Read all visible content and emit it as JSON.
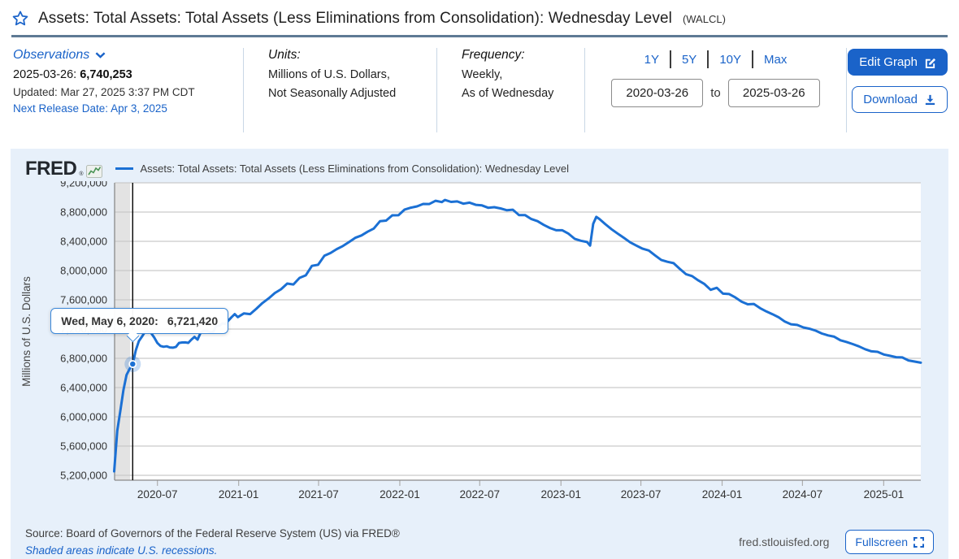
{
  "colors": {
    "accent": "#1a63c9",
    "line": "#1b70d4",
    "card_bg": "#e7f0fa",
    "rule": "#5e7a94"
  },
  "header": {
    "title": "Assets: Total Assets: Total Assets (Less Eliminations from Consolidation): Wednesday Level",
    "series_id": "(WALCL)"
  },
  "info_bar": {
    "observations": {
      "label": "Observations",
      "latest_date": "2025-03-26:",
      "latest_value": "6,740,253",
      "updated": "Updated: Mar 27, 2025 3:37 PM CDT",
      "next_release": "Next Release Date: Apr 3, 2025"
    },
    "units": {
      "label": "Units:",
      "line1": "Millions of U.S. Dollars,",
      "line2": "Not Seasonally Adjusted"
    },
    "frequency": {
      "label": "Frequency:",
      "line1": "Weekly,",
      "line2": "As of Wednesday"
    },
    "range": {
      "presets": [
        "1Y",
        "5Y",
        "10Y",
        "Max"
      ],
      "start_date": "2020-03-26",
      "to_label": "to",
      "end_date": "2025-03-26"
    },
    "actions": {
      "edit_graph": "Edit Graph",
      "download": "Download"
    }
  },
  "chart": {
    "logo": "FRED",
    "logo_reg": "®",
    "legend": "Assets: Total Assets: Total Assets (Less Eliminations from Consolidation): Wednesday Level",
    "tooltip": {
      "date_label": "Wed, May 6, 2020:",
      "value": "6,721,420"
    },
    "footer": {
      "source": "Source: Board of Governors of the Federal Reserve System (US) via FRED®",
      "recession_note": "Shaded areas indicate U.S. recessions.",
      "site": "fred.stlouisfed.org",
      "fullscreen": "Fullscreen"
    }
  },
  "chart_data": {
    "type": "line",
    "title": "Assets: Total Assets: Total Assets (Less Eliminations from Consolidation): Wednesday Level",
    "xlabel": "",
    "ylabel": "Millions of U.S. Dollars",
    "grid": true,
    "legend_position": "top-left",
    "x_range": [
      "2020-03-26",
      "2025-03-26"
    ],
    "ylim": [
      5200000,
      9200000
    ],
    "line_color": "#1b70d4",
    "highlight": {
      "date": "2020-05-06",
      "value": 6721420
    },
    "recession_band": {
      "start": "2020-03-26",
      "end": "2020-04-30"
    },
    "y_ticks": [
      {
        "label": "9,200,000",
        "value": 9200000
      },
      {
        "label": "8,800,000",
        "value": 8800000
      },
      {
        "label": "8,400,000",
        "value": 8400000
      },
      {
        "label": "8,000,000",
        "value": 8000000
      },
      {
        "label": "7,600,000",
        "value": 7600000
      },
      {
        "label": "7,200,000",
        "value": 7200000
      },
      {
        "label": "6,800,000",
        "value": 6800000
      },
      {
        "label": "6,400,000",
        "value": 6400000
      },
      {
        "label": "6,000,000",
        "value": 6000000
      },
      {
        "label": "5,600,000",
        "value": 5600000
      },
      {
        "label": "5,200,000",
        "value": 5200000
      }
    ],
    "x_ticks": [
      {
        "label": "2020-07",
        "date": "2020-07-01"
      },
      {
        "label": "2021-01",
        "date": "2021-01-01"
      },
      {
        "label": "2021-07",
        "date": "2021-07-01"
      },
      {
        "label": "2022-01",
        "date": "2022-01-01"
      },
      {
        "label": "2022-07",
        "date": "2022-07-01"
      },
      {
        "label": "2023-01",
        "date": "2023-01-01"
      },
      {
        "label": "2023-07",
        "date": "2023-07-01"
      },
      {
        "label": "2024-01",
        "date": "2024-01-01"
      },
      {
        "label": "2024-07",
        "date": "2024-07-01"
      },
      {
        "label": "2025-01",
        "date": "2025-01-01"
      }
    ],
    "series": [
      {
        "name": "Assets: Total Assets: Total Assets (Less Eliminations from Consolidation): Wednesday Level",
        "points": [
          [
            "2020-03-25",
            5254297
          ],
          [
            "2020-04-01",
            5811609
          ],
          [
            "2020-04-08",
            6083558
          ],
          [
            "2020-04-15",
            6367888
          ],
          [
            "2020-04-22",
            6573161
          ],
          [
            "2020-04-29",
            6655926
          ],
          [
            "2020-05-06",
            6721420
          ],
          [
            "2020-05-13",
            6910000
          ],
          [
            "2020-05-20",
            7037000
          ],
          [
            "2020-05-27",
            7097000
          ],
          [
            "2020-06-03",
            7165000
          ],
          [
            "2020-06-10",
            7169000
          ],
          [
            "2020-06-17",
            7143000
          ],
          [
            "2020-06-24",
            7082000
          ],
          [
            "2020-07-01",
            7009000
          ],
          [
            "2020-07-08",
            6969000
          ],
          [
            "2020-07-15",
            6958000
          ],
          [
            "2020-07-22",
            6964000
          ],
          [
            "2020-07-29",
            6949000
          ],
          [
            "2020-08-05",
            6945000
          ],
          [
            "2020-08-12",
            6957000
          ],
          [
            "2020-08-19",
            7010000
          ],
          [
            "2020-08-26",
            7017000
          ],
          [
            "2020-09-02",
            7018000
          ],
          [
            "2020-09-09",
            7011000
          ],
          [
            "2020-09-16",
            7056000
          ],
          [
            "2020-09-23",
            7093000
          ],
          [
            "2020-09-30",
            7056000
          ],
          [
            "2020-10-07",
            7151000
          ],
          [
            "2020-10-14",
            7178000
          ],
          [
            "2020-10-21",
            7177000
          ],
          [
            "2020-10-28",
            7157000
          ],
          [
            "2020-11-04",
            7157000
          ],
          [
            "2020-11-11",
            7243000
          ],
          [
            "2020-11-18",
            7243000
          ],
          [
            "2020-11-25",
            7279000
          ],
          [
            "2020-12-02",
            7270000
          ],
          [
            "2020-12-09",
            7319000
          ],
          [
            "2020-12-16",
            7363000
          ],
          [
            "2020-12-23",
            7404000
          ],
          [
            "2020-12-30",
            7363000
          ],
          [
            "2021-01-13",
            7415000
          ],
          [
            "2021-01-27",
            7404000
          ],
          [
            "2021-02-10",
            7478000
          ],
          [
            "2021-02-24",
            7557000
          ],
          [
            "2021-03-10",
            7620000
          ],
          [
            "2021-03-24",
            7693000
          ],
          [
            "2021-04-07",
            7745000
          ],
          [
            "2021-04-21",
            7822000
          ],
          [
            "2021-05-05",
            7810000
          ],
          [
            "2021-05-19",
            7900000
          ],
          [
            "2021-06-02",
            7935000
          ],
          [
            "2021-06-16",
            8064000
          ],
          [
            "2021-06-30",
            8079000
          ],
          [
            "2021-07-14",
            8202000
          ],
          [
            "2021-07-28",
            8240000
          ],
          [
            "2021-08-11",
            8293000
          ],
          [
            "2021-08-25",
            8336000
          ],
          [
            "2021-09-08",
            8390000
          ],
          [
            "2021-09-22",
            8448000
          ],
          [
            "2021-10-06",
            8480000
          ],
          [
            "2021-10-20",
            8531000
          ],
          [
            "2021-11-03",
            8575000
          ],
          [
            "2021-11-17",
            8675000
          ],
          [
            "2021-12-01",
            8683000
          ],
          [
            "2021-12-15",
            8756000
          ],
          [
            "2021-12-29",
            8757000
          ],
          [
            "2022-01-12",
            8834000
          ],
          [
            "2022-01-26",
            8860000
          ],
          [
            "2022-02-09",
            8878000
          ],
          [
            "2022-02-23",
            8911000
          ],
          [
            "2022-03-09",
            8910000
          ],
          [
            "2022-03-23",
            8954000
          ],
          [
            "2022-04-06",
            8937000
          ],
          [
            "2022-04-13",
            8965000
          ],
          [
            "2022-04-27",
            8939000
          ],
          [
            "2022-05-11",
            8946000
          ],
          [
            "2022-05-25",
            8914000
          ],
          [
            "2022-06-08",
            8929000
          ],
          [
            "2022-06-22",
            8899000
          ],
          [
            "2022-07-06",
            8891000
          ],
          [
            "2022-07-20",
            8859000
          ],
          [
            "2022-08-03",
            8867000
          ],
          [
            "2022-08-17",
            8850000
          ],
          [
            "2022-08-31",
            8826000
          ],
          [
            "2022-09-14",
            8832000
          ],
          [
            "2022-09-28",
            8759000
          ],
          [
            "2022-10-12",
            8758000
          ],
          [
            "2022-10-26",
            8705000
          ],
          [
            "2022-11-09",
            8676000
          ],
          [
            "2022-11-23",
            8625000
          ],
          [
            "2022-12-07",
            8582000
          ],
          [
            "2022-12-21",
            8551000
          ],
          [
            "2023-01-04",
            8551000
          ],
          [
            "2023-01-18",
            8505000
          ],
          [
            "2023-02-01",
            8434000
          ],
          [
            "2023-02-15",
            8408000
          ],
          [
            "2023-03-01",
            8390000
          ],
          [
            "2023-03-08",
            8342000
          ],
          [
            "2023-03-15",
            8639000
          ],
          [
            "2023-03-22",
            8734000
          ],
          [
            "2023-03-29",
            8706000
          ],
          [
            "2023-04-12",
            8632000
          ],
          [
            "2023-04-26",
            8563000
          ],
          [
            "2023-05-10",
            8503000
          ],
          [
            "2023-05-24",
            8446000
          ],
          [
            "2023-06-07",
            8386000
          ],
          [
            "2023-06-21",
            8341000
          ],
          [
            "2023-07-05",
            8299000
          ],
          [
            "2023-07-19",
            8275000
          ],
          [
            "2023-08-02",
            8208000
          ],
          [
            "2023-08-16",
            8146000
          ],
          [
            "2023-08-30",
            8120000
          ],
          [
            "2023-09-13",
            8101000
          ],
          [
            "2023-09-27",
            8023000
          ],
          [
            "2023-10-11",
            7951000
          ],
          [
            "2023-10-25",
            7925000
          ],
          [
            "2023-11-08",
            7866000
          ],
          [
            "2023-11-22",
            7815000
          ],
          [
            "2023-12-06",
            7737000
          ],
          [
            "2023-12-20",
            7764000
          ],
          [
            "2024-01-03",
            7684000
          ],
          [
            "2024-01-17",
            7679000
          ],
          [
            "2024-01-31",
            7632000
          ],
          [
            "2024-02-14",
            7576000
          ],
          [
            "2024-02-28",
            7539000
          ],
          [
            "2024-03-13",
            7543000
          ],
          [
            "2024-03-27",
            7485000
          ],
          [
            "2024-04-10",
            7441000
          ],
          [
            "2024-04-24",
            7403000
          ],
          [
            "2024-05-08",
            7361000
          ],
          [
            "2024-05-22",
            7302000
          ],
          [
            "2024-06-05",
            7266000
          ],
          [
            "2024-06-19",
            7257000
          ],
          [
            "2024-07-03",
            7222000
          ],
          [
            "2024-07-17",
            7205000
          ],
          [
            "2024-07-31",
            7178000
          ],
          [
            "2024-08-14",
            7139000
          ],
          [
            "2024-08-28",
            7113000
          ],
          [
            "2024-09-11",
            7095000
          ],
          [
            "2024-09-25",
            7047000
          ],
          [
            "2024-10-09",
            7023000
          ],
          [
            "2024-10-23",
            6994000
          ],
          [
            "2024-11-06",
            6963000
          ],
          [
            "2024-11-20",
            6924000
          ],
          [
            "2024-12-04",
            6896000
          ],
          [
            "2024-12-18",
            6889000
          ],
          [
            "2025-01-01",
            6852000
          ],
          [
            "2025-01-15",
            6834000
          ],
          [
            "2025-01-29",
            6816000
          ],
          [
            "2025-02-12",
            6812000
          ],
          [
            "2025-02-26",
            6771000
          ],
          [
            "2025-03-12",
            6756000
          ],
          [
            "2025-03-26",
            6740253
          ]
        ]
      }
    ]
  }
}
